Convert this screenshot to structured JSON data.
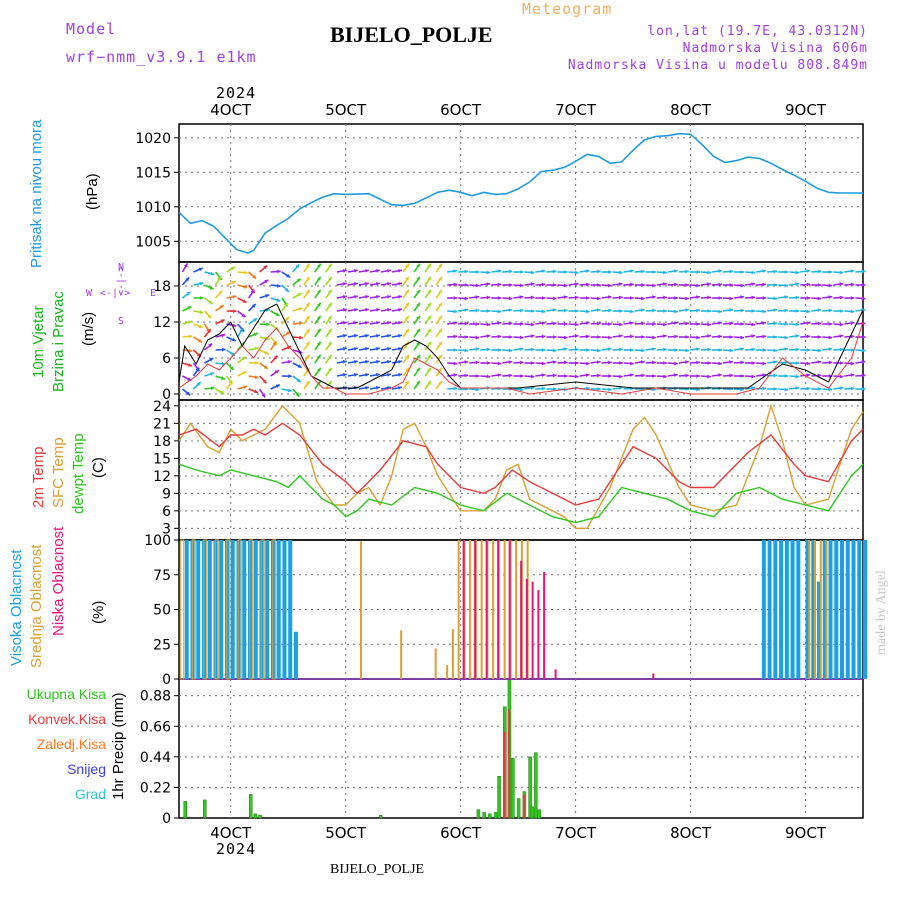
{
  "header": {
    "model_label": "Model",
    "model_name": "wrf−nmm_v3.9.1  e1km",
    "title": "BIJELO_POLJE",
    "meteogram": "Meteogram",
    "lonlat": "lon,lat (19.7E, 43.0312N)",
    "elevation": "Nadmorska Visina 606m",
    "model_elevation": "Nadmorska Visina u modelu 808.849m",
    "footer_station": "BIJELO_POLJE",
    "watermark": "made by Angel",
    "year_top": "2024",
    "year_bottom": "2024"
  },
  "colors": {
    "pressure": "#1e9be0",
    "temp2m": "#e63b3b",
    "sfctemp": "#d9a030",
    "dewpt": "#2ec81e",
    "wind_label": "#19b41e",
    "high_cloud": "#1aa0e6",
    "mid_cloud": "#d9a030",
    "low_cloud": "#e6147d",
    "total_precip": "#2ec81e",
    "conv_precip": "#e63b3b",
    "frozen_precip": "#ff7a1e",
    "snow": "#3c3cdc",
    "graupel": "#2ec8c8",
    "compass": "#a040e0",
    "model": "#a040e0"
  },
  "axes": {
    "date_ticks": [
      "4OCT",
      "5OCT",
      "6OCT",
      "7OCT",
      "8OCT",
      "9OCT"
    ],
    "x_range_days": [
      3.55,
      9.5
    ]
  },
  "panel_labels": {
    "pressure": {
      "title": "Pritisak na nivou mora",
      "unit": "(hPa)"
    },
    "wind": {
      "line1": "10m Vjetar",
      "line2": "Brzina i Pravac",
      "unit": "(m/s)"
    },
    "wind_compass": {
      "n": "N",
      "s": "S",
      "e": "E",
      "w": "W",
      "arrow_v": "<-|->",
      "arrow_h": "<-|->"
    },
    "temp": {
      "t2m": "2m Temp",
      "sfc": "SFC Temp",
      "dew": "dewpt Temp",
      "unit": "(C)"
    },
    "cloud": {
      "high": "Visoka Oblacnost",
      "mid": "Srednja Oblacnost",
      "low": "Niska Oblacnost",
      "unit": "(%)"
    },
    "precip": {
      "total": "Ukupna Kisa",
      "conv": "Konvek.Kisa",
      "frozen": "Zaledj.Kisa",
      "snow": "Snijeg",
      "graupel": "Grad",
      "axis": "1hr Precip (mm)"
    }
  },
  "chart_data": [
    {
      "type": "line",
      "title": "",
      "ylabel": "(hPa)",
      "ylim": [
        1002,
        1022
      ],
      "yticks": [
        "1005",
        "1010",
        "1015",
        "1020"
      ],
      "series": [
        {
          "name": "Pritisak na nivou mora",
          "x": [
            3.55,
            3.65,
            3.75,
            3.85,
            3.95,
            4.05,
            4.15,
            4.2,
            4.3,
            4.4,
            4.5,
            4.6,
            4.7,
            4.8,
            4.9,
            5.0,
            5.2,
            5.4,
            5.5,
            5.6,
            5.7,
            5.8,
            5.9,
            6.0,
            6.1,
            6.2,
            6.3,
            6.4,
            6.5,
            6.6,
            6.7,
            6.8,
            6.9,
            7.0,
            7.1,
            7.2,
            7.3,
            7.4,
            7.5,
            7.6,
            7.7,
            7.8,
            7.9,
            8.0,
            8.1,
            8.2,
            8.3,
            8.4,
            8.5,
            8.6,
            8.7,
            8.8,
            8.9,
            9.0,
            9.1,
            9.2,
            9.3,
            9.4,
            9.5
          ],
          "y": [
            1009.2,
            1007.6,
            1008.0,
            1007.2,
            1005.5,
            1003.8,
            1003.3,
            1003.7,
            1006.2,
            1007.3,
            1008.3,
            1009.7,
            1010.6,
            1011.4,
            1011.9,
            1011.8,
            1011.9,
            1010.3,
            1010.2,
            1010.5,
            1011.3,
            1012.1,
            1012.4,
            1012.1,
            1011.6,
            1012.1,
            1011.8,
            1011.9,
            1012.6,
            1013.6,
            1015.1,
            1015.3,
            1015.7,
            1016.6,
            1017.6,
            1017.3,
            1016.3,
            1016.5,
            1018.2,
            1019.7,
            1020.2,
            1020.3,
            1020.6,
            1020.5,
            1019.0,
            1017.3,
            1016.4,
            1016.7,
            1017.2,
            1017.0,
            1016.3,
            1015.4,
            1014.6,
            1013.7,
            1012.7,
            1012.1,
            1012.0,
            1012.0,
            1012.0
          ]
        }
      ]
    },
    {
      "type": "line",
      "title": "",
      "ylabel": "(m/s)",
      "ylim": [
        -1,
        22
      ],
      "yticks": [
        "0",
        "6",
        "12",
        "18"
      ],
      "series": [
        {
          "name": "wind_speed",
          "x": [
            3.55,
            3.6,
            3.7,
            3.8,
            3.9,
            4.0,
            4.1,
            4.2,
            4.3,
            4.4,
            4.5,
            4.6,
            4.7,
            4.8,
            4.9,
            5.0,
            5.1,
            5.2,
            5.3,
            5.4,
            5.5,
            5.6,
            5.7,
            5.8,
            5.9,
            6.0,
            6.5,
            7.0,
            7.5,
            8.0,
            8.5,
            8.8,
            9.0,
            9.2,
            9.4,
            9.5
          ],
          "y": [
            2,
            8,
            5,
            9,
            10,
            12,
            8,
            11,
            14,
            15,
            11,
            7,
            3,
            2,
            1,
            1,
            1,
            2,
            3,
            4,
            8,
            9,
            8,
            6,
            3,
            1,
            1,
            2,
            1,
            1,
            1,
            5,
            4,
            2,
            10,
            14
          ]
        },
        {
          "name": "wind_gust",
          "x": [
            3.55,
            3.7,
            3.8,
            3.9,
            4.0,
            4.1,
            4.2,
            4.3,
            4.4,
            4.5,
            4.6,
            4.7,
            4.8,
            4.9,
            5.0,
            5.2,
            5.4,
            5.5,
            5.6,
            5.7,
            5.8,
            5.9,
            6.0,
            6.4,
            6.6,
            7.0,
            7.4,
            7.7,
            8.0,
            8.4,
            8.6,
            8.8,
            9.0,
            9.2,
            9.4,
            9.5
          ],
          "y": [
            1,
            3,
            5,
            4,
            6,
            8,
            6,
            9,
            11,
            8,
            6,
            3,
            1,
            1,
            0,
            0,
            1,
            2,
            6,
            5,
            4,
            2,
            1,
            1,
            0,
            1,
            0,
            1,
            0,
            0,
            1,
            6,
            3,
            1,
            6,
            12
          ]
        }
      ]
    },
    {
      "type": "line",
      "title": "",
      "ylabel": "(C)",
      "ylim": [
        1,
        25
      ],
      "yticks": [
        "3",
        "6",
        "9",
        "12",
        "15",
        "18",
        "21",
        "24"
      ],
      "series": [
        {
          "name": "2m Temp",
          "x": [
            3.55,
            3.7,
            3.9,
            4.0,
            4.1,
            4.2,
            4.3,
            4.45,
            4.6,
            4.8,
            5.0,
            5.1,
            5.2,
            5.3,
            5.5,
            5.7,
            5.8,
            6.0,
            6.2,
            6.3,
            6.45,
            6.6,
            6.8,
            7.0,
            7.2,
            7.4,
            7.5,
            7.7,
            7.9,
            8.0,
            8.2,
            8.5,
            8.7,
            8.9,
            9.0,
            9.2,
            9.4,
            9.5
          ],
          "y": [
            19,
            20,
            17,
            19,
            19,
            20,
            19,
            21,
            19,
            14,
            11,
            9,
            11,
            13,
            18,
            17,
            14,
            10,
            9,
            10,
            13,
            11,
            9,
            7,
            8,
            14,
            17,
            15,
            11,
            10,
            10,
            16,
            19,
            14,
            12,
            11,
            18,
            20
          ]
        },
        {
          "name": "SFC Temp",
          "x": [
            3.55,
            3.65,
            3.8,
            3.9,
            4.0,
            4.1,
            4.2,
            4.3,
            4.45,
            4.6,
            4.75,
            4.9,
            5.0,
            5.1,
            5.2,
            5.3,
            5.4,
            5.5,
            5.6,
            5.7,
            5.8,
            6.0,
            6.2,
            6.3,
            6.4,
            6.5,
            6.6,
            6.7,
            6.9,
            7.0,
            7.1,
            7.3,
            7.5,
            7.6,
            7.7,
            7.9,
            8.0,
            8.2,
            8.4,
            8.6,
            8.7,
            8.8,
            8.9,
            9.0,
            9.2,
            9.4,
            9.5
          ],
          "y": [
            18,
            21,
            17,
            16,
            20,
            18,
            19,
            20,
            24,
            21,
            11,
            7,
            7,
            9,
            10,
            7,
            12,
            20,
            21,
            17,
            12,
            6,
            6,
            8,
            13,
            14,
            8,
            7,
            5,
            3,
            3,
            10,
            20,
            22,
            19,
            10,
            7,
            6,
            7,
            17,
            24,
            18,
            10,
            7,
            8,
            20,
            23
          ]
        },
        {
          "name": "dewpt Temp",
          "x": [
            3.55,
            3.7,
            3.9,
            4.0,
            4.2,
            4.4,
            4.5,
            4.6,
            4.7,
            4.8,
            4.9,
            5.0,
            5.1,
            5.2,
            5.4,
            5.6,
            5.8,
            6.0,
            6.2,
            6.4,
            6.6,
            6.8,
            7.0,
            7.2,
            7.4,
            7.6,
            7.8,
            8.0,
            8.2,
            8.4,
            8.6,
            8.8,
            9.0,
            9.2,
            9.4,
            9.5
          ],
          "y": [
            14,
            13,
            12,
            13,
            12,
            11,
            10,
            12,
            10,
            8,
            7,
            5,
            6,
            8,
            7,
            10,
            9,
            7,
            6,
            9,
            7,
            5,
            4,
            5,
            10,
            9,
            8,
            6,
            5,
            9,
            10,
            8,
            7,
            6,
            12,
            14
          ]
        }
      ]
    },
    {
      "type": "bar",
      "title": "",
      "ylabel": "(%)",
      "ylim": [
        0,
        100
      ],
      "yticks": [
        "0",
        "25",
        "50",
        "75",
        "100"
      ],
      "series": [
        {
          "name": "Visoka Oblacnost",
          "x": [
            3.6,
            3.65,
            3.7,
            3.75,
            3.8,
            3.85,
            3.9,
            3.95,
            4.0,
            4.05,
            4.1,
            4.15,
            4.2,
            4.25,
            4.3,
            4.35,
            4.4,
            4.45,
            4.5,
            4.55,
            8.62,
            8.67,
            8.72,
            8.77,
            8.82,
            8.87,
            8.92,
            9.0,
            9.05,
            9.1,
            9.15,
            9.2,
            9.25,
            9.3,
            9.35,
            9.4,
            9.45,
            9.5
          ],
          "y": [
            100,
            100,
            100,
            100,
            100,
            100,
            100,
            100,
            100,
            100,
            100,
            100,
            100,
            100,
            100,
            100,
            100,
            100,
            100,
            34,
            100,
            100,
            100,
            100,
            100,
            100,
            100,
            100,
            100,
            70,
            100,
            100,
            100,
            100,
            100,
            100,
            100,
            100
          ]
        },
        {
          "name": "Srednja Oblacnost",
          "x": [
            3.6,
            3.7,
            3.8,
            3.9,
            4.0,
            4.1,
            4.2,
            4.3,
            4.4,
            5.15,
            5.5,
            5.8,
            5.9,
            5.95,
            6.0,
            6.05,
            6.1,
            6.15,
            6.2,
            6.25,
            6.3,
            6.35,
            6.4,
            6.45,
            6.5,
            6.55,
            6.6,
            9.05,
            9.1,
            9.15,
            9.2
          ],
          "y": [
            100,
            100,
            100,
            100,
            100,
            100,
            100,
            100,
            100,
            99,
            35,
            22,
            10,
            36,
            100,
            100,
            100,
            100,
            100,
            100,
            100,
            100,
            100,
            100,
            100,
            100,
            100,
            100,
            100,
            100,
            100
          ]
        },
        {
          "name": "Niska Oblacnost",
          "x": [
            6.0,
            6.1,
            6.2,
            6.3,
            6.4,
            6.5,
            6.55,
            6.6,
            6.65,
            6.7,
            6.8,
            7.65
          ],
          "y": [
            100,
            100,
            100,
            100,
            100,
            85,
            72,
            70,
            64,
            77,
            7,
            4
          ]
        }
      ]
    },
    {
      "type": "bar",
      "title": "",
      "ylabel": "1hr Precip (mm)",
      "ylim": [
        0,
        1.0
      ],
      "yticks": [
        "0",
        "0.22",
        "0.44",
        "0.66",
        "0.88"
      ],
      "series": [
        {
          "name": "Ukupna Kisa",
          "x": [
            3.6,
            3.77,
            4.17,
            4.21,
            4.25,
            5.3,
            6.15,
            6.2,
            6.25,
            6.3,
            6.33,
            6.38,
            6.42,
            6.45,
            6.5,
            6.55,
            6.6,
            6.62,
            6.65,
            6.68
          ],
          "y": [
            0.12,
            0.13,
            0.17,
            0.03,
            0.02,
            0.02,
            0.06,
            0.04,
            0.03,
            0.04,
            0.3,
            0.8,
            0.99,
            0.43,
            0.14,
            0.19,
            0.44,
            0.08,
            0.47,
            0.06
          ]
        },
        {
          "name": "Konvek.Kisa",
          "x": [
            6.38,
            6.42,
            6.55
          ],
          "y": [
            0.62,
            0.78,
            0.17
          ]
        }
      ]
    }
  ]
}
